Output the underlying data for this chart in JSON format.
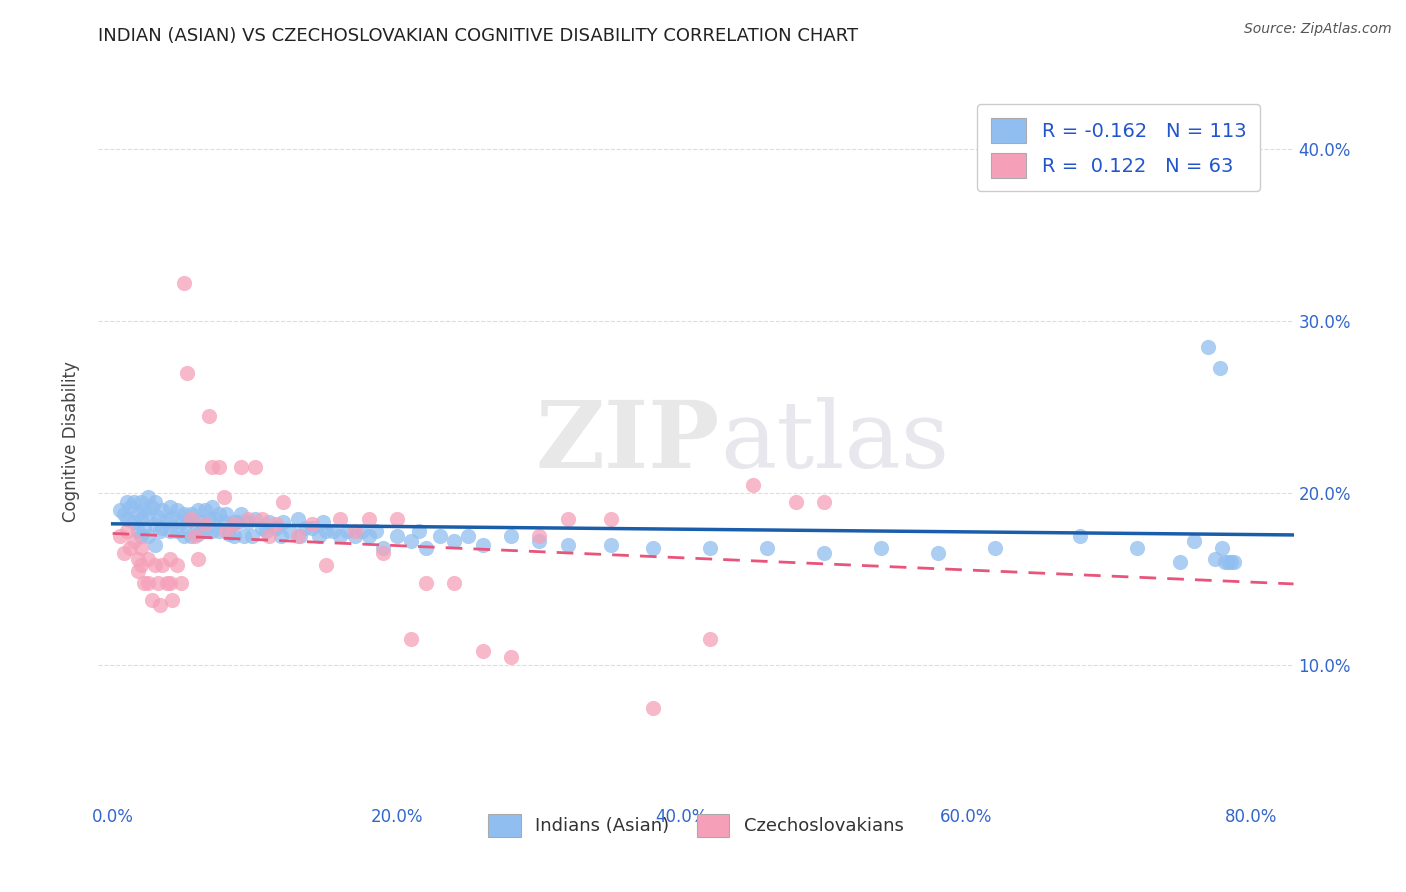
{
  "title": "INDIAN (ASIAN) VS CZECHOSLOVAKIAN COGNITIVE DISABILITY CORRELATION CHART",
  "source": "Source: ZipAtlas.com",
  "xlabel_vals": [
    0.0,
    0.2,
    0.4,
    0.6,
    0.8
  ],
  "ylabel_vals": [
    0.1,
    0.2,
    0.3,
    0.4
  ],
  "xlim": [
    -0.01,
    0.83
  ],
  "ylim": [
    0.02,
    0.44
  ],
  "color_blue": "#90BEF0",
  "color_pink": "#F5A0B8",
  "trendline_blue": "#1A5DAB",
  "trendline_pink": "#E8547A",
  "R_blue": -0.162,
  "N_blue": 113,
  "R_pink": 0.122,
  "N_pink": 63,
  "legend_label_blue": "Indians (Asian)",
  "legend_label_pink": "Czechoslovakians",
  "ylabel": "Cognitive Disability",
  "watermark_zip": "ZIP",
  "watermark_atlas": "atlas",
  "grid_color": "#DDDDDD",
  "title_fontsize": 13,
  "blue_intercept": 0.19,
  "blue_slope": -0.02,
  "pink_intercept": 0.155,
  "pink_slope": 0.06,
  "blue_x": [
    0.005,
    0.008,
    0.01,
    0.01,
    0.012,
    0.015,
    0.015,
    0.018,
    0.018,
    0.02,
    0.02,
    0.02,
    0.022,
    0.022,
    0.025,
    0.025,
    0.025,
    0.028,
    0.03,
    0.03,
    0.03,
    0.032,
    0.033,
    0.035,
    0.035,
    0.038,
    0.04,
    0.04,
    0.042,
    0.045,
    0.045,
    0.048,
    0.05,
    0.05,
    0.052,
    0.055,
    0.055,
    0.058,
    0.06,
    0.06,
    0.062,
    0.065,
    0.065,
    0.068,
    0.07,
    0.07,
    0.072,
    0.075,
    0.075,
    0.078,
    0.08,
    0.082,
    0.085,
    0.085,
    0.088,
    0.09,
    0.092,
    0.095,
    0.098,
    0.1,
    0.105,
    0.108,
    0.11,
    0.115,
    0.118,
    0.12,
    0.125,
    0.13,
    0.132,
    0.135,
    0.14,
    0.145,
    0.148,
    0.15,
    0.155,
    0.16,
    0.165,
    0.17,
    0.175,
    0.18,
    0.185,
    0.19,
    0.2,
    0.21,
    0.215,
    0.22,
    0.23,
    0.24,
    0.25,
    0.26,
    0.28,
    0.3,
    0.32,
    0.35,
    0.38,
    0.42,
    0.46,
    0.5,
    0.54,
    0.58,
    0.62,
    0.68,
    0.72,
    0.75,
    0.76,
    0.77,
    0.775,
    0.778,
    0.78,
    0.782,
    0.784,
    0.786,
    0.788
  ],
  "blue_y": [
    0.19,
    0.188,
    0.195,
    0.185,
    0.192,
    0.195,
    0.183,
    0.188,
    0.178,
    0.195,
    0.185,
    0.175,
    0.19,
    0.18,
    0.198,
    0.188,
    0.175,
    0.192,
    0.195,
    0.182,
    0.17,
    0.186,
    0.178,
    0.19,
    0.18,
    0.184,
    0.192,
    0.178,
    0.186,
    0.19,
    0.178,
    0.183,
    0.188,
    0.175,
    0.183,
    0.188,
    0.175,
    0.182,
    0.19,
    0.176,
    0.183,
    0.19,
    0.178,
    0.185,
    0.192,
    0.178,
    0.185,
    0.188,
    0.178,
    0.183,
    0.188,
    0.176,
    0.183,
    0.175,
    0.183,
    0.188,
    0.175,
    0.183,
    0.175,
    0.185,
    0.18,
    0.178,
    0.183,
    0.18,
    0.175,
    0.183,
    0.178,
    0.185,
    0.175,
    0.18,
    0.18,
    0.175,
    0.183,
    0.178,
    0.178,
    0.175,
    0.178,
    0.175,
    0.178,
    0.175,
    0.178,
    0.168,
    0.175,
    0.172,
    0.178,
    0.168,
    0.175,
    0.172,
    0.175,
    0.17,
    0.175,
    0.172,
    0.17,
    0.17,
    0.168,
    0.168,
    0.168,
    0.165,
    0.168,
    0.165,
    0.168,
    0.175,
    0.168,
    0.16,
    0.172,
    0.285,
    0.162,
    0.273,
    0.168,
    0.16,
    0.16,
    0.16,
    0.16
  ],
  "pink_x": [
    0.005,
    0.008,
    0.01,
    0.012,
    0.015,
    0.018,
    0.018,
    0.02,
    0.02,
    0.022,
    0.025,
    0.025,
    0.028,
    0.03,
    0.032,
    0.033,
    0.035,
    0.038,
    0.04,
    0.04,
    0.042,
    0.045,
    0.048,
    0.05,
    0.052,
    0.055,
    0.058,
    0.06,
    0.065,
    0.068,
    0.07,
    0.075,
    0.078,
    0.08,
    0.085,
    0.09,
    0.095,
    0.1,
    0.105,
    0.11,
    0.115,
    0.12,
    0.13,
    0.14,
    0.15,
    0.16,
    0.17,
    0.18,
    0.19,
    0.2,
    0.21,
    0.22,
    0.24,
    0.26,
    0.28,
    0.3,
    0.32,
    0.35,
    0.38,
    0.42,
    0.45,
    0.48,
    0.5
  ],
  "pink_y": [
    0.175,
    0.165,
    0.178,
    0.168,
    0.172,
    0.162,
    0.155,
    0.168,
    0.158,
    0.148,
    0.162,
    0.148,
    0.138,
    0.158,
    0.148,
    0.135,
    0.158,
    0.148,
    0.162,
    0.148,
    0.138,
    0.158,
    0.148,
    0.322,
    0.27,
    0.185,
    0.175,
    0.162,
    0.182,
    0.245,
    0.215,
    0.215,
    0.198,
    0.178,
    0.182,
    0.215,
    0.185,
    0.215,
    0.185,
    0.175,
    0.182,
    0.195,
    0.175,
    0.182,
    0.158,
    0.185,
    0.178,
    0.185,
    0.165,
    0.185,
    0.115,
    0.148,
    0.148,
    0.108,
    0.105,
    0.175,
    0.185,
    0.185,
    0.075,
    0.115,
    0.205,
    0.195,
    0.195
  ]
}
